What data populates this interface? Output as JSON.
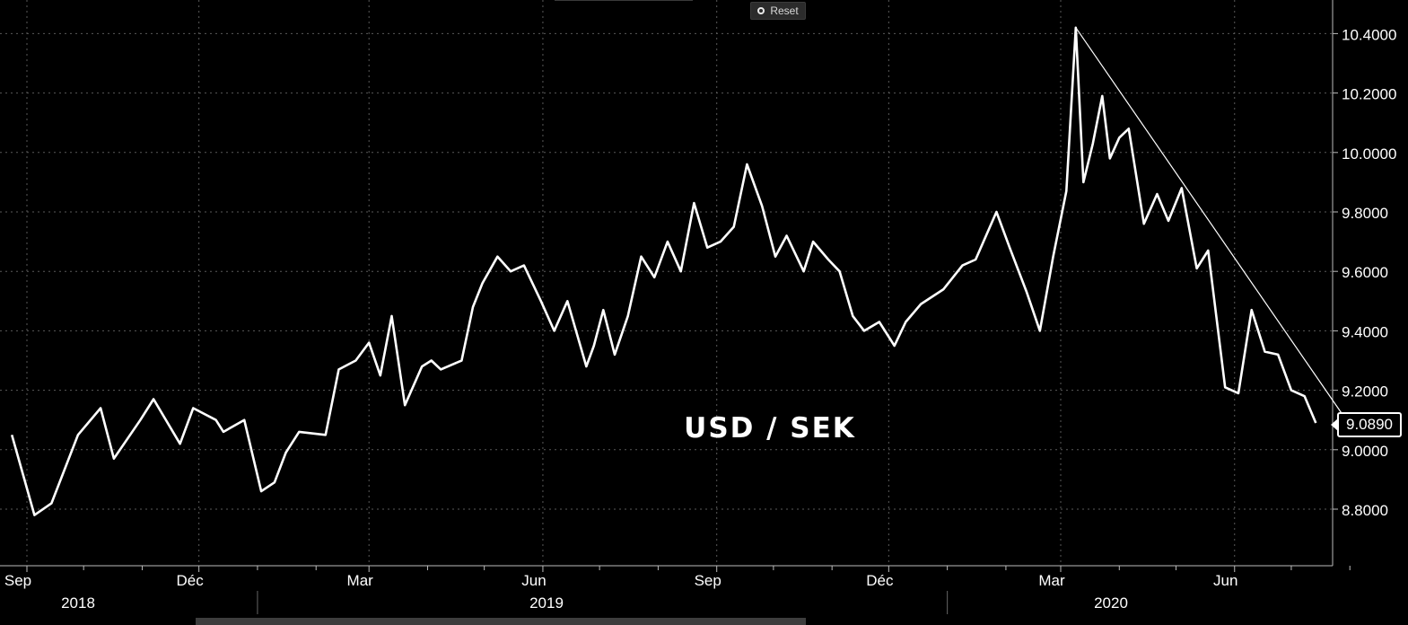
{
  "toolbar": {
    "reset_label": "Reset",
    "reset_icon": "radio-dot-icon"
  },
  "colors": {
    "background": "#000000",
    "line": "#ffffff",
    "grid": "#5a5a5a"
  },
  "chart_data": {
    "type": "line",
    "title": "USD / SEK",
    "ylim": [
      8.6,
      10.42
    ],
    "yticks": [
      "8.8000",
      "9.0000",
      "9.2000",
      "9.4000",
      "9.6000",
      "9.8000",
      "10.0000",
      "10.2000",
      "10.4000"
    ],
    "last_value": "9.0890",
    "x_month_labels": [
      "Sep",
      "Déc",
      "Mar",
      "Jun",
      "Sep",
      "Déc",
      "Mar",
      "Jun"
    ],
    "x_year_labels": [
      "2018",
      "2019",
      "2020"
    ],
    "grid": true,
    "x_dates": [
      "2018-08-24",
      "2018-09-05",
      "2018-09-14",
      "2018-09-28",
      "2018-10-10",
      "2018-10-17",
      "2018-10-31",
      "2018-11-07",
      "2018-11-21",
      "2018-11-28",
      "2018-12-10",
      "2018-12-14",
      "2018-12-25",
      "2019-01-03",
      "2019-01-10",
      "2019-01-16",
      "2019-01-23",
      "2019-02-06",
      "2019-02-13",
      "2019-02-22",
      "2019-03-01",
      "2019-03-07",
      "2019-03-13",
      "2019-03-20",
      "2019-03-29",
      "2019-04-03",
      "2019-04-08",
      "2019-04-19",
      "2019-04-25",
      "2019-04-30",
      "2019-05-08",
      "2019-05-15",
      "2019-05-22",
      "2019-05-31",
      "2019-06-07",
      "2019-06-14",
      "2019-06-24",
      "2019-06-28",
      "2019-07-03",
      "2019-07-09",
      "2019-07-16",
      "2019-07-23",
      "2019-07-30",
      "2019-08-06",
      "2019-08-13",
      "2019-08-20",
      "2019-08-27",
      "2019-09-03",
      "2019-09-10",
      "2019-09-17",
      "2019-09-25",
      "2019-10-02",
      "2019-10-08",
      "2019-10-17",
      "2019-10-22",
      "2019-10-30",
      "2019-11-05",
      "2019-11-12",
      "2019-11-18",
      "2019-11-26",
      "2019-12-04",
      "2019-12-10",
      "2019-12-18",
      "2019-12-30",
      "2020-01-09",
      "2020-01-16",
      "2020-01-27",
      "2020-02-03",
      "2020-02-12",
      "2020-02-19",
      "2020-02-26",
      "2020-03-04",
      "2020-03-09",
      "2020-03-13",
      "2020-03-18",
      "2020-03-23",
      "2020-03-27",
      "2020-04-01",
      "2020-04-06",
      "2020-04-14",
      "2020-04-21",
      "2020-04-27",
      "2020-05-04",
      "2020-05-12",
      "2020-05-18",
      "2020-05-27",
      "2020-06-03",
      "2020-06-10",
      "2020-06-17",
      "2020-06-24",
      "2020-07-01",
      "2020-07-08",
      "2020-07-14"
    ],
    "series": [
      {
        "values": [
          9.05,
          8.78,
          8.82,
          9.05,
          9.14,
          8.97,
          9.1,
          9.17,
          9.02,
          9.14,
          9.1,
          9.06,
          9.1,
          8.86,
          8.89,
          8.99,
          9.06,
          9.05,
          9.27,
          9.3,
          9.36,
          9.25,
          9.45,
          9.15,
          9.28,
          9.3,
          9.27,
          9.3,
          9.48,
          9.56,
          9.65,
          9.6,
          9.62,
          9.5,
          9.4,
          9.5,
          9.28,
          9.35,
          9.47,
          9.32,
          9.45,
          9.65,
          9.58,
          9.7,
          9.6,
          9.83,
          9.68,
          9.7,
          9.75,
          9.96,
          9.82,
          9.65,
          9.72,
          9.6,
          9.7,
          9.64,
          9.6,
          9.45,
          9.4,
          9.43,
          9.35,
          9.43,
          9.49,
          9.54,
          9.62,
          9.64,
          9.8,
          9.68,
          9.53,
          9.4,
          9.65,
          9.87,
          10.42,
          9.9,
          10.03,
          10.19,
          9.98,
          10.05,
          10.08,
          9.76,
          9.86,
          9.77,
          9.88,
          9.61,
          9.67,
          9.21,
          9.19,
          9.47,
          9.33,
          9.32,
          9.2,
          9.18,
          9.09
        ]
      },
      {
        "values": [
          10.42,
          9.11
        ]
      }
    ],
    "series_x": [
      [
        "2020-03-09",
        "2020-07-29"
      ]
    ]
  }
}
